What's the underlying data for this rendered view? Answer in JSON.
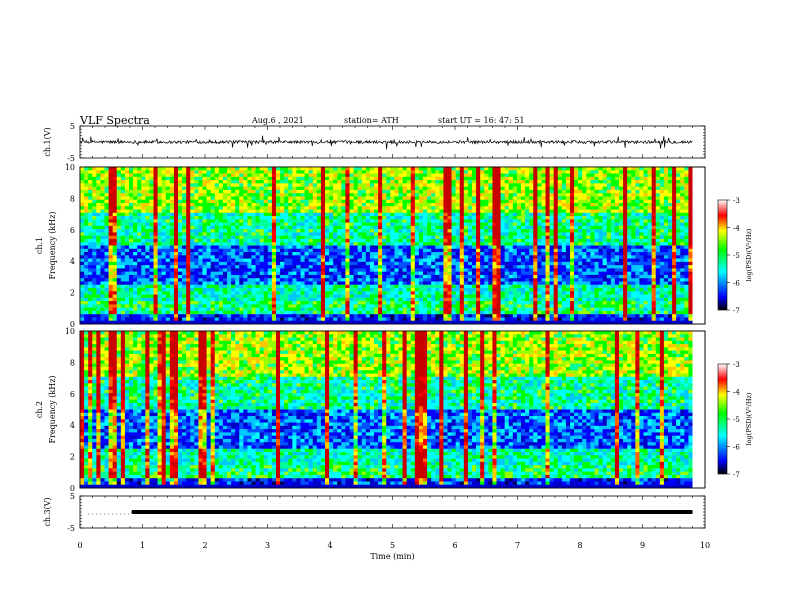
{
  "header": {
    "title": "VLF  Spectra",
    "date": "Aug.6  , 2021",
    "station": "station= ATH",
    "start_ut": "start  UT  =    16: 47: 51"
  },
  "chart_data": [
    {
      "type": "line",
      "panel": "ch1-waveform",
      "ylabel": "ch.1(V)",
      "ylim": [
        -5,
        5
      ],
      "yticks": [
        "5",
        "-5"
      ],
      "xlim": [
        0,
        10
      ],
      "series_baseline": 0,
      "series_color": "#000000"
    },
    {
      "type": "heatmap",
      "panel": "ch1-spectrogram",
      "ylabel_channel": "ch.1",
      "ylabel": "Frequency  (kHz)",
      "ylim": [
        0,
        10
      ],
      "yticks": [
        "0",
        "2",
        "4",
        "6",
        "8",
        "10"
      ],
      "xlim": [
        0,
        10
      ],
      "colorbar": {
        "label": "log(PSD)(V²/Hz)",
        "range": [
          -7,
          -3
        ],
        "ticks": [
          "-3",
          "-4",
          "-5",
          "-6",
          "-7"
        ],
        "colors": [
          "#000000",
          "#0000ff",
          "#00ffff",
          "#00ff00",
          "#ffff00",
          "#ff0000",
          "#ffffff"
        ]
      }
    },
    {
      "type": "heatmap",
      "panel": "ch2-spectrogram",
      "ylabel_channel": "ch.2",
      "ylabel": "Frequency  (kHz)",
      "ylim": [
        0,
        10
      ],
      "yticks": [
        "0",
        "2",
        "4",
        "6",
        "8",
        "10"
      ],
      "xlim": [
        0,
        10
      ],
      "colorbar": {
        "label": "log(PSD)(V²/Hz)",
        "range": [
          -7,
          -3
        ],
        "ticks": [
          "-3",
          "-4",
          "-5",
          "-6",
          "-7"
        ],
        "colors": [
          "#000000",
          "#0000ff",
          "#00ffff",
          "#00ff00",
          "#ffff00",
          "#ff0000",
          "#ffffff"
        ]
      }
    },
    {
      "type": "line",
      "panel": "ch3-waveform",
      "ylabel": "ch.3(V)",
      "ylim": [
        -5,
        5
      ],
      "yticks": [
        "5",
        "-5"
      ],
      "xlim": [
        0,
        10
      ],
      "xlabel": "Time  (min)",
      "xticks": [
        "0",
        "1",
        "2",
        "3",
        "4",
        "5",
        "6",
        "7",
        "8",
        "9",
        "10"
      ],
      "series_start_min": 0.83,
      "series_end_min": 9.8,
      "series_level": 0
    }
  ]
}
